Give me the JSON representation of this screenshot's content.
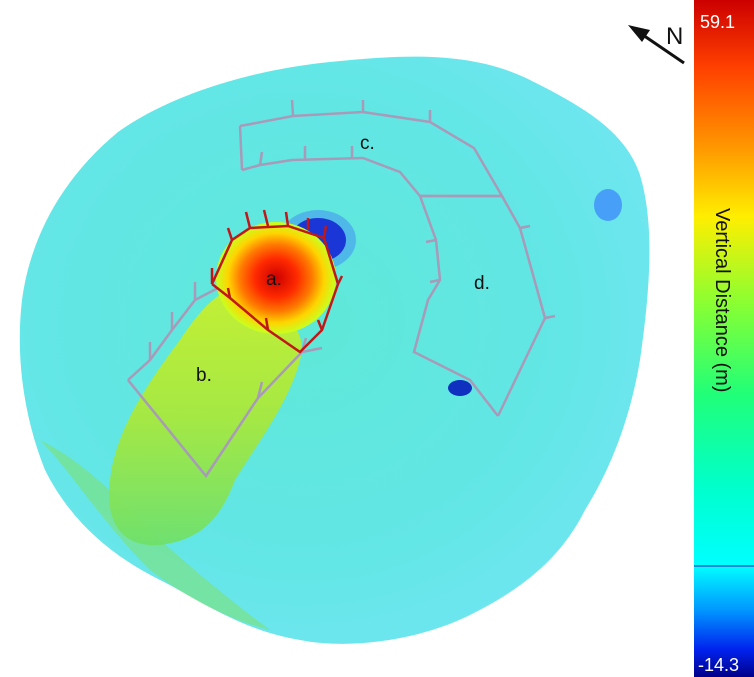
{
  "map": {
    "regions": [
      {
        "id": "a",
        "label": "a."
      },
      {
        "id": "b",
        "label": "b."
      },
      {
        "id": "c",
        "label": "c."
      },
      {
        "id": "d",
        "label": "d."
      }
    ],
    "north_label": "N"
  },
  "colorbar": {
    "max_label": "59.1",
    "min_label": "-14.3",
    "title": "Vertical Distance (m)",
    "max_value": 59.1,
    "min_value": -14.3,
    "colors": [
      "#cc0000",
      "#ff5a00",
      "#ffaa00",
      "#ffff00",
      "#99ff33",
      "#33ff66",
      "#00ffaa",
      "#00ffff",
      "#00aaff",
      "#0033ff",
      "#000099"
    ]
  }
}
